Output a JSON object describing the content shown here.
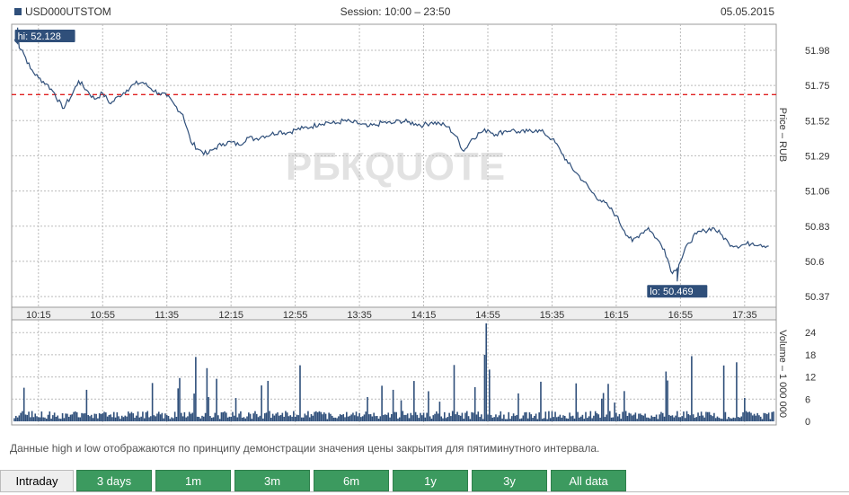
{
  "header": {
    "ticker": "USD000UTSTOM",
    "session": "Session: 10:00 – 23:50",
    "date": "05.05.2015"
  },
  "watermark": "РБКQUOTE",
  "colors": {
    "line": "#2f4f7a",
    "volume": "#2f4f7a",
    "ref_line": "#e02020",
    "grid": "#bbbbbb"
  },
  "chart_data": {
    "type": "line",
    "price": {
      "ylabel": "Price – RUB",
      "ylim": [
        50.3,
        52.15
      ],
      "yticks": [
        50.37,
        50.6,
        50.83,
        51.06,
        51.29,
        51.52,
        51.75,
        51.98
      ],
      "ref_line": 51.69,
      "hi": {
        "label": "hi: 52.128",
        "time": "10:02",
        "value": 52.128
      },
      "lo": {
        "label": "lo: 50.469",
        "time": "16:53",
        "value": 50.469
      },
      "series": {
        "x": [
          "10:00",
          "10:05",
          "10:10",
          "10:15",
          "10:20",
          "10:25",
          "10:30",
          "10:35",
          "10:40",
          "10:45",
          "10:50",
          "10:55",
          "11:00",
          "11:05",
          "11:10",
          "11:15",
          "11:20",
          "11:25",
          "11:30",
          "11:35",
          "11:40",
          "11:45",
          "11:50",
          "11:55",
          "12:00",
          "12:05",
          "12:10",
          "12:15",
          "12:20",
          "12:25",
          "12:30",
          "12:35",
          "12:40",
          "12:45",
          "12:50",
          "12:55",
          "13:00",
          "13:05",
          "13:10",
          "13:15",
          "13:20",
          "13:25",
          "13:30",
          "13:35",
          "13:40",
          "13:45",
          "13:50",
          "13:55",
          "14:00",
          "14:05",
          "14:10",
          "14:15",
          "14:20",
          "14:25",
          "14:30",
          "14:35",
          "14:40",
          "14:45",
          "14:50",
          "14:55",
          "15:00",
          "15:05",
          "15:10",
          "15:15",
          "15:20",
          "15:25",
          "15:30",
          "15:35",
          "15:40",
          "15:45",
          "15:50",
          "15:55",
          "16:00",
          "16:05",
          "16:10",
          "16:15",
          "16:20",
          "16:25",
          "16:30",
          "16:35",
          "16:40",
          "16:45",
          "16:50",
          "16:55",
          "17:00",
          "17:05",
          "17:10",
          "17:15",
          "17:20",
          "17:25",
          "17:30",
          "17:35",
          "17:40",
          "17:45",
          "17:50"
        ],
        "values": [
          52.05,
          51.98,
          51.86,
          51.8,
          51.76,
          51.7,
          51.6,
          51.67,
          51.78,
          51.72,
          51.66,
          51.7,
          51.63,
          51.68,
          51.72,
          51.76,
          51.77,
          51.73,
          51.7,
          51.68,
          51.62,
          51.56,
          51.38,
          51.33,
          51.3,
          51.34,
          51.37,
          51.38,
          51.36,
          51.41,
          51.4,
          51.42,
          51.43,
          51.45,
          51.44,
          51.46,
          51.47,
          51.48,
          51.5,
          51.51,
          51.5,
          51.52,
          51.51,
          51.5,
          51.48,
          51.49,
          51.51,
          51.5,
          51.52,
          51.51,
          51.5,
          51.49,
          51.51,
          51.5,
          51.48,
          51.42,
          51.32,
          51.4,
          51.44,
          51.46,
          51.43,
          51.45,
          51.46,
          51.44,
          51.45,
          51.46,
          51.44,
          51.4,
          51.33,
          51.24,
          51.18,
          51.12,
          51.05,
          51.0,
          50.96,
          50.9,
          50.8,
          50.73,
          50.78,
          50.82,
          50.75,
          50.68,
          50.52,
          50.6,
          50.72,
          50.78,
          50.8,
          50.82,
          50.78,
          50.72,
          50.7,
          50.71,
          50.72,
          50.71,
          50.7
        ]
      }
    },
    "volume": {
      "ylabel": "Volume – 1 000 000",
      "ylim": [
        0,
        26
      ],
      "yticks": [
        0,
        6,
        12,
        18,
        24
      ],
      "peak": {
        "time": "14:54",
        "value": 26.5
      }
    },
    "x_axis": {
      "start": "10:00",
      "end": "17:53",
      "ticks": [
        "10:15",
        "10:55",
        "11:35",
        "12:15",
        "12:55",
        "13:35",
        "14:15",
        "14:55",
        "15:35",
        "16:15",
        "16:55",
        "17:35"
      ]
    }
  },
  "note": "Данные high и low отображаются по принципу демонстрации значения цены закрытия для пятиминутного интервала.",
  "tabs": [
    {
      "label": "Intraday",
      "active": true
    },
    {
      "label": "3 days",
      "active": false
    },
    {
      "label": "1m",
      "active": false
    },
    {
      "label": "3m",
      "active": false
    },
    {
      "label": "6m",
      "active": false
    },
    {
      "label": "1y",
      "active": false
    },
    {
      "label": "3y",
      "active": false
    },
    {
      "label": "All data",
      "active": false
    }
  ]
}
